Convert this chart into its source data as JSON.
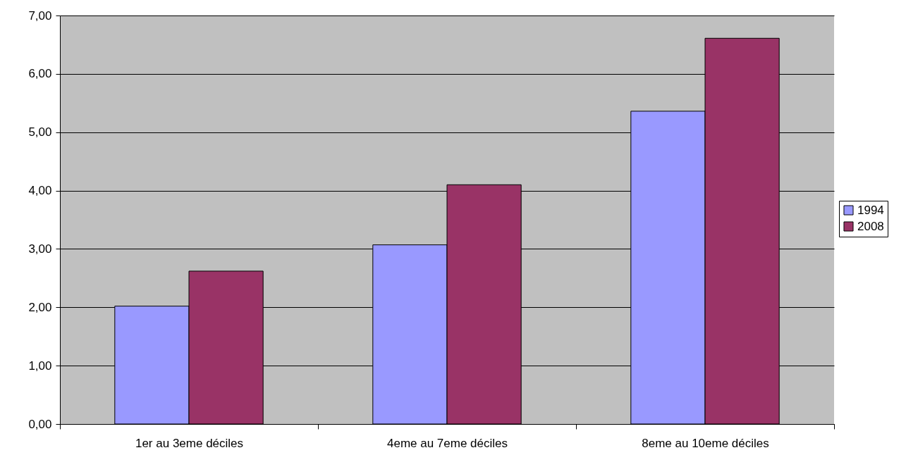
{
  "chart_data": {
    "type": "bar",
    "categories": [
      "1er au 3eme déciles",
      "4eme au 7eme déciles",
      "8eme au 10eme déciles"
    ],
    "series": [
      {
        "name": "1994",
        "color": "#9999ff",
        "values": [
          2.02,
          3.07,
          5.36
        ]
      },
      {
        "name": "2008",
        "color": "#993366",
        "values": [
          2.62,
          4.1,
          6.61
        ]
      }
    ],
    "ylim": [
      0,
      7
    ],
    "yticks": [
      {
        "value": 0,
        "label": "0,00"
      },
      {
        "value": 1,
        "label": "1,00"
      },
      {
        "value": 2,
        "label": "2,00"
      },
      {
        "value": 3,
        "label": "3,00"
      },
      {
        "value": 4,
        "label": "4,00"
      },
      {
        "value": 5,
        "label": "5,00"
      },
      {
        "value": 6,
        "label": "6,00"
      },
      {
        "value": 7,
        "label": "7,00"
      }
    ],
    "grid": "y",
    "legend": "right"
  }
}
